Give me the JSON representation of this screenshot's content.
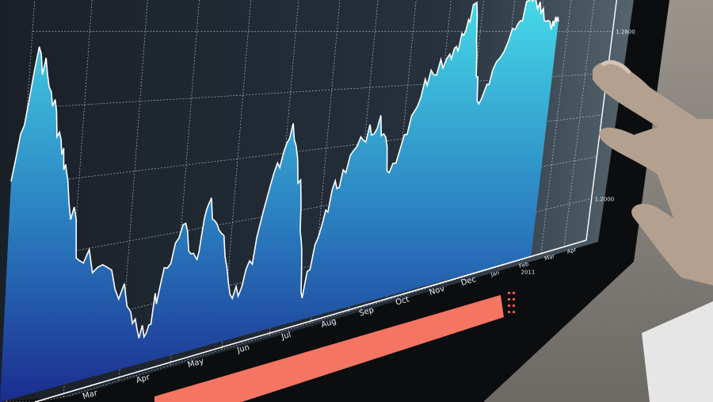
{
  "chart_data": {
    "type": "area",
    "title": "",
    "xlabel": "",
    "ylabel": "",
    "ylim": [
      1.18,
      1.3
    ],
    "grid": true,
    "x_tick_labels": [
      "Mar",
      "Apr",
      "May",
      "Jun",
      "Jul",
      "Aug",
      "Sep",
      "Oct",
      "Nov",
      "Dec",
      "Jan",
      "Feb",
      "Mar",
      "Apr"
    ],
    "year_label": "2011",
    "y_ticks": [
      {
        "value": 1.28,
        "label": "1.2800"
      },
      {
        "value": 1.2,
        "label": "1.2000"
      }
    ],
    "series": [
      {
        "x": [
          "Jan 10",
          "Jan 20",
          "Jan 28",
          "Feb 5",
          "Feb 10",
          "Feb 19",
          "Mar 5",
          "Mar 20",
          "Mar 29",
          "Apr 6",
          "Apr 17",
          "Apr 26",
          "May 1",
          "May 10",
          "May 20",
          "May 31",
          "Jun 10",
          "Jun 20",
          "Jul 1",
          "Jul 8",
          "Jul 20",
          "Aug 1",
          "Aug 15",
          "Aug 27",
          "Sep 8",
          "Sep 22",
          "Oct 5",
          "Oct 20",
          "Nov 1",
          "Nov 10",
          "Nov 20",
          "Dec 2",
          "Dec 20",
          "Jan 3",
          "Jan 15",
          "Jan 28",
          "Feb 5"
        ],
        "values": [
          1.2412,
          1.276,
          1.264,
          1.2508,
          1.24,
          1.2172,
          1.2136,
          1.1992,
          1.1908,
          1.204,
          1.222,
          1.2112,
          1.2268,
          1.2172,
          1.1956,
          1.2052,
          1.234,
          1.2496,
          1.222,
          1.1896,
          1.2184,
          1.2316,
          1.2412,
          1.2496,
          1.228,
          1.2484,
          1.2652,
          1.2712,
          1.2784,
          1.2916,
          1.252,
          1.264,
          1.2808,
          1.294,
          1.288,
          1.2808,
          1.2844
        ]
      }
    ],
    "colors": {
      "area_top": "#46dbe9",
      "area_bottom": "#1b2c8f",
      "line": "#ffffff",
      "background": "#1c2530",
      "bar": "#f47561",
      "dots": "#e8584a"
    }
  }
}
